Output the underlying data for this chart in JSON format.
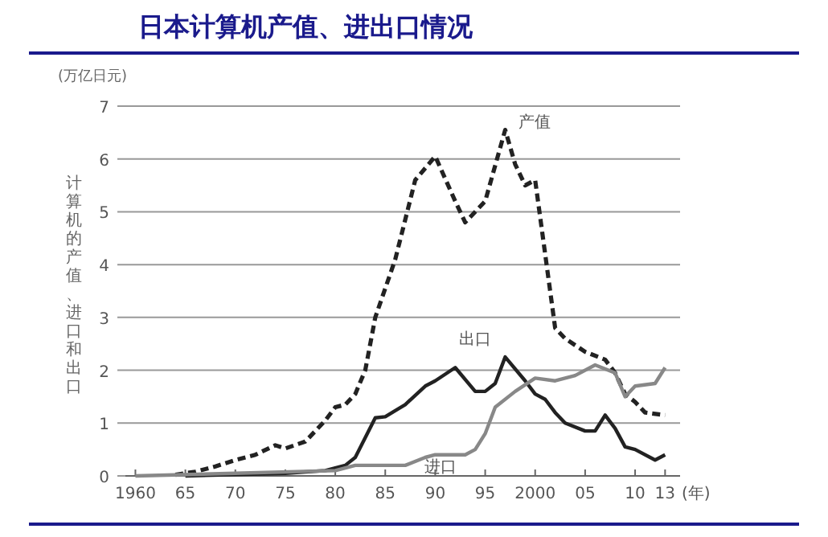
{
  "chart_data": {
    "type": "line",
    "title": "日本计算机产值、进出口情况",
    "ylabel": "计算机的产值、进口和出口",
    "xlabel": "(年)",
    "annotations": [
      "(万亿日元)"
    ],
    "xlim": [
      1959,
      2014.5
    ],
    "ylim": [
      0,
      7
    ],
    "xticks": [
      1960,
      {
        "value": 1965,
        "label": "65"
      },
      {
        "value": 1970,
        "label": "70"
      },
      {
        "value": 1975,
        "label": "75"
      },
      {
        "value": 1980,
        "label": "80"
      },
      {
        "value": 1985,
        "label": "85"
      },
      {
        "value": 1990,
        "label": "90"
      },
      {
        "value": 1995,
        "label": "95"
      },
      2000,
      {
        "value": 2005,
        "label": "05"
      },
      {
        "value": 2010,
        "label": "10"
      },
      {
        "value": 2013,
        "label": "13"
      }
    ],
    "yticks": [
      0,
      1,
      2,
      3,
      4,
      5,
      6,
      7
    ],
    "grid": "y",
    "marker": "none",
    "series": [
      {
        "name": "产值",
        "color": "#222222",
        "line_style": "dashed",
        "x": [
          1964,
          1966,
          1968,
          1970,
          1972,
          1974,
          1975,
          1977,
          1979,
          1980,
          1981,
          1982,
          1983,
          1984,
          1986,
          1988,
          1990,
          1992,
          1993,
          1994,
          1995,
          1997,
          1998,
          1999,
          2000,
          2001,
          2002,
          2003,
          2005,
          2007,
          2008,
          2009,
          2010,
          2011,
          2013
        ],
        "values": [
          0.02,
          0.08,
          0.18,
          0.3,
          0.4,
          0.58,
          0.52,
          0.65,
          1.05,
          1.3,
          1.35,
          1.55,
          2.0,
          3.0,
          4.1,
          5.6,
          6.05,
          5.2,
          4.8,
          5.0,
          5.2,
          6.55,
          5.9,
          5.5,
          5.6,
          4.2,
          2.8,
          2.6,
          2.35,
          2.2,
          1.95,
          1.55,
          1.4,
          1.2,
          1.15
        ]
      },
      {
        "name": "出口",
        "color": "#222222",
        "line_style": "solid",
        "x": [
          1965,
          1975,
          1979,
          1981,
          1982,
          1984,
          1985,
          1987,
          1989,
          1990,
          1992,
          1994,
          1995,
          1996,
          1997,
          1999,
          2000,
          2001,
          2002,
          2003,
          2005,
          2006,
          2007,
          2008,
          2009,
          2010,
          2012,
          2013
        ],
        "values": [
          0,
          0.05,
          0.1,
          0.2,
          0.35,
          1.1,
          1.12,
          1.35,
          1.7,
          1.8,
          2.05,
          1.6,
          1.6,
          1.75,
          2.25,
          1.8,
          1.55,
          1.45,
          1.2,
          1.0,
          0.85,
          0.85,
          1.15,
          0.9,
          0.55,
          0.5,
          0.3,
          0.4
        ]
      },
      {
        "name": "进口",
        "color": "#888888",
        "line_style": "solid",
        "x": [
          1960,
          1970,
          1980,
          1982,
          1985,
          1987,
          1989,
          1990,
          1993,
          1994,
          1995,
          1996,
          1998,
          2000,
          2002,
          2004,
          2006,
          2008,
          2009,
          2010,
          2012,
          2013
        ],
        "values": [
          0,
          0.05,
          0.1,
          0.2,
          0.2,
          0.2,
          0.35,
          0.4,
          0.4,
          0.5,
          0.8,
          1.3,
          1.6,
          1.85,
          1.8,
          1.9,
          2.1,
          1.95,
          1.5,
          1.7,
          1.75,
          2.05
        ]
      }
    ]
  }
}
